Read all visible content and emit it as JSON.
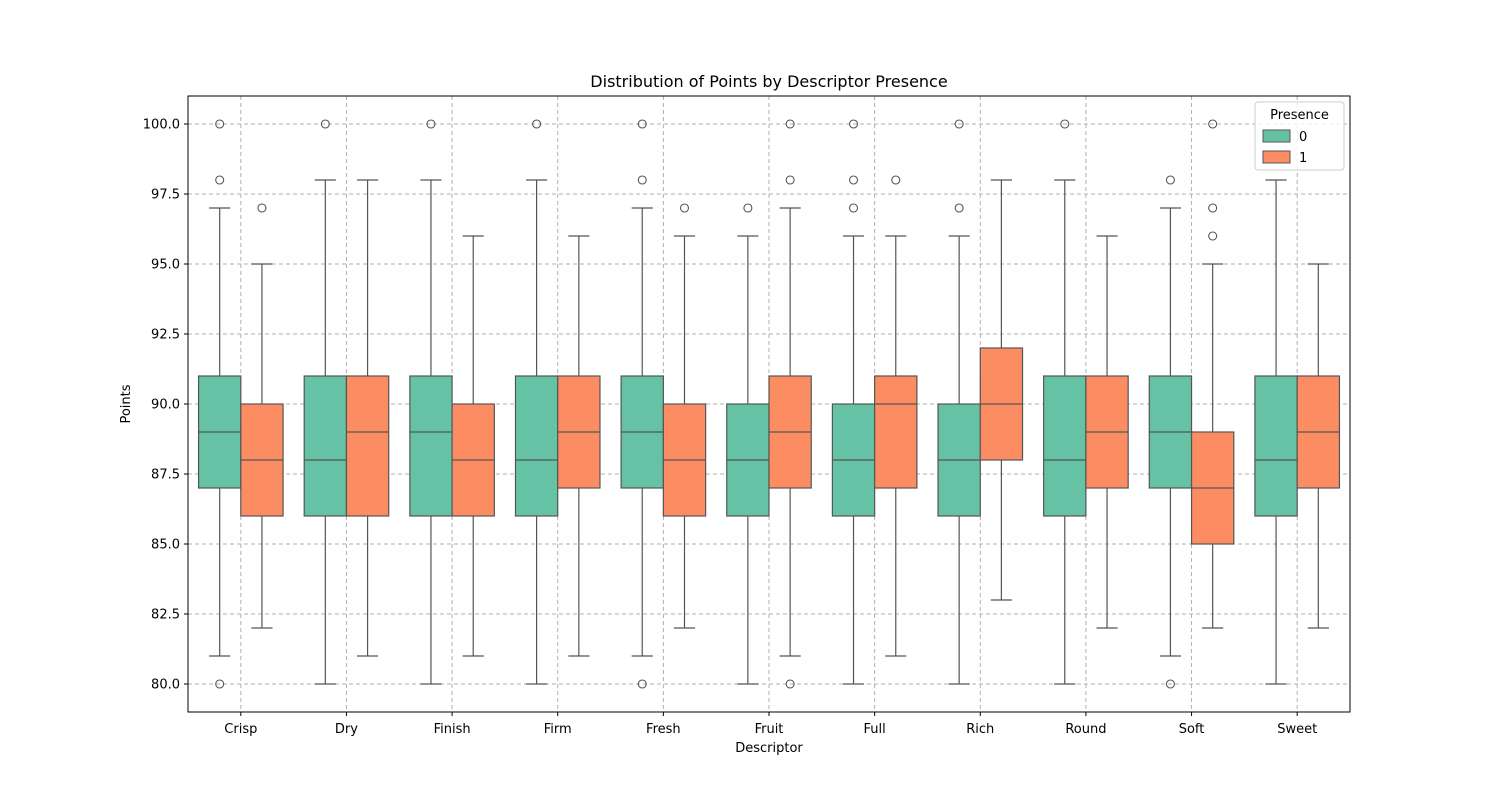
{
  "chart_data": {
    "type": "box",
    "title": "Distribution of Points by Descriptor Presence",
    "xlabel": "Descriptor",
    "ylabel": "Points",
    "ylim": [
      79,
      101
    ],
    "yticks": [
      "80.0",
      "82.5",
      "85.0",
      "87.5",
      "90.0",
      "92.5",
      "95.0",
      "97.5",
      "100.0"
    ],
    "grid": true,
    "legend": {
      "title": "Presence",
      "position": "top-right"
    },
    "categories": [
      "Crisp",
      "Dry",
      "Finish",
      "Firm",
      "Fresh",
      "Fruit",
      "Full",
      "Rich",
      "Round",
      "Soft",
      "Sweet"
    ],
    "series": [
      {
        "name": "0",
        "color": "#66c2a5",
        "boxes": [
          {
            "whislo": 81,
            "q1": 87,
            "med": 89,
            "q3": 91,
            "whishi": 97,
            "fliers": [
              100,
              98,
              80
            ]
          },
          {
            "whislo": 80,
            "q1": 86,
            "med": 88,
            "q3": 91,
            "whishi": 98,
            "fliers": [
              100
            ]
          },
          {
            "whislo": 80,
            "q1": 86,
            "med": 89,
            "q3": 91,
            "whishi": 98,
            "fliers": [
              100
            ]
          },
          {
            "whislo": 80,
            "q1": 86,
            "med": 88,
            "q3": 91,
            "whishi": 98,
            "fliers": [
              100
            ]
          },
          {
            "whislo": 81,
            "q1": 87,
            "med": 89,
            "q3": 91,
            "whishi": 97,
            "fliers": [
              100,
              98,
              80
            ]
          },
          {
            "whislo": 80,
            "q1": 86,
            "med": 88,
            "q3": 90,
            "whishi": 96,
            "fliers": [
              97
            ]
          },
          {
            "whislo": 80,
            "q1": 86,
            "med": 88,
            "q3": 90,
            "whishi": 96,
            "fliers": [
              100,
              98,
              97
            ]
          },
          {
            "whislo": 80,
            "q1": 86,
            "med": 88,
            "q3": 90,
            "whishi": 96,
            "fliers": [
              100,
              97
            ]
          },
          {
            "whislo": 80,
            "q1": 86,
            "med": 88,
            "q3": 91,
            "whishi": 98,
            "fliers": [
              100
            ]
          },
          {
            "whislo": 81,
            "q1": 87,
            "med": 89,
            "q3": 91,
            "whishi": 97,
            "fliers": [
              98,
              80
            ]
          },
          {
            "whislo": 80,
            "q1": 86,
            "med": 88,
            "q3": 91,
            "whishi": 98,
            "fliers": []
          }
        ]
      },
      {
        "name": "1",
        "color": "#fc8d62",
        "boxes": [
          {
            "whislo": 82,
            "q1": 86,
            "med": 88,
            "q3": 90,
            "whishi": 95,
            "fliers": [
              97
            ]
          },
          {
            "whislo": 81,
            "q1": 86,
            "med": 89,
            "q3": 91,
            "whishi": 98,
            "fliers": []
          },
          {
            "whislo": 81,
            "q1": 86,
            "med": 88,
            "q3": 90,
            "whishi": 96,
            "fliers": []
          },
          {
            "whislo": 81,
            "q1": 87,
            "med": 89,
            "q3": 91,
            "whishi": 96,
            "fliers": []
          },
          {
            "whislo": 82,
            "q1": 86,
            "med": 88,
            "q3": 90,
            "whishi": 96,
            "fliers": [
              97
            ]
          },
          {
            "whislo": 81,
            "q1": 87,
            "med": 89,
            "q3": 91,
            "whishi": 97,
            "fliers": [
              100,
              98,
              80
            ]
          },
          {
            "whislo": 81,
            "q1": 87,
            "med": 90,
            "q3": 91,
            "whishi": 96,
            "fliers": [
              98
            ]
          },
          {
            "whislo": 83,
            "q1": 88,
            "med": 90,
            "q3": 92,
            "whishi": 98,
            "fliers": []
          },
          {
            "whislo": 82,
            "q1": 87,
            "med": 89,
            "q3": 91,
            "whishi": 96,
            "fliers": []
          },
          {
            "whislo": 82,
            "q1": 85,
            "med": 87,
            "q3": 89,
            "whishi": 95,
            "fliers": [
              100,
              97,
              96
            ]
          },
          {
            "whislo": 82,
            "q1": 87,
            "med": 89,
            "q3": 91,
            "whishi": 95,
            "fliers": []
          }
        ]
      }
    ]
  }
}
